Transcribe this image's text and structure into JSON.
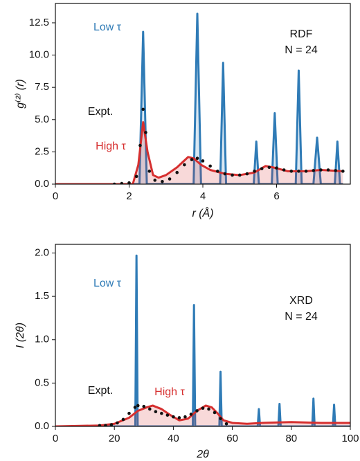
{
  "chart_data": [
    {
      "type": "line",
      "xlabel": "r (Å)",
      "ylabel": "g⁽²⁾ (r)",
      "annotations": [
        "RDF",
        "N = 24"
      ],
      "xlim": [
        0,
        8
      ],
      "xticks": [
        0,
        2,
        4,
        6
      ],
      "ylim": [
        0,
        14
      ],
      "yticks": [
        {
          "value": 0,
          "label": "0.0"
        },
        {
          "value": 2.5,
          "label": "2.5"
        },
        {
          "value": 5,
          "label": "5.0"
        },
        {
          "value": 7.5,
          "label": "7.5"
        },
        {
          "value": 10,
          "label": "10.0"
        },
        {
          "value": 12.5,
          "label": "12.5"
        }
      ],
      "series": [
        {
          "name": "Low τ",
          "color": "#2f7bb6",
          "mode": "lines",
          "fill": true,
          "x": [
            0,
            2.28,
            2.38,
            2.48,
            3.75,
            3.85,
            3.95,
            4.47,
            4.55,
            4.63,
            5.38,
            5.45,
            5.52,
            5.87,
            5.95,
            6.03,
            6.52,
            6.6,
            6.68,
            7.0,
            7.1,
            7.2,
            7.58,
            7.65,
            7.72,
            7.8
          ],
          "values": [
            0,
            0,
            11.8,
            0,
            0,
            13.2,
            0,
            0,
            9.4,
            0,
            0,
            3.3,
            0,
            0,
            5.5,
            0,
            0,
            8.8,
            0,
            0,
            3.6,
            0,
            0,
            3.3,
            0,
            0
          ]
        },
        {
          "name": "High τ",
          "color": "#d62f2f",
          "mode": "lines",
          "fill": true,
          "x": [
            0,
            2.1,
            2.25,
            2.38,
            2.5,
            2.65,
            2.8,
            3.0,
            3.3,
            3.6,
            3.75,
            3.95,
            4.2,
            4.6,
            5.0,
            5.4,
            5.7,
            5.9,
            6.3,
            6.8,
            7.2,
            7.8
          ],
          "values": [
            0,
            0,
            1.5,
            4.8,
            2.5,
            0.7,
            0.5,
            0.7,
            1.3,
            2.1,
            2.0,
            1.5,
            1.1,
            0.8,
            0.7,
            0.9,
            1.4,
            1.3,
            1.0,
            1.0,
            1.1,
            1.0
          ]
        },
        {
          "name": "Expt.",
          "color": "#111111",
          "mode": "markers",
          "fill": false,
          "x": [
            1.6,
            1.8,
            2.0,
            2.2,
            2.3,
            2.38,
            2.45,
            2.55,
            2.7,
            2.9,
            3.1,
            3.3,
            3.5,
            3.7,
            3.85,
            4.0,
            4.2,
            4.4,
            4.6,
            4.8,
            5.0,
            5.2,
            5.4,
            5.6,
            5.8,
            6.0,
            6.2,
            6.4,
            6.6,
            6.8,
            7.0,
            7.2,
            7.4,
            7.6,
            7.8
          ],
          "values": [
            0,
            0.05,
            0.1,
            0.6,
            3.0,
            5.8,
            4.0,
            1.0,
            0.3,
            0.2,
            0.4,
            0.9,
            1.5,
            1.9,
            2.0,
            1.8,
            1.4,
            1.0,
            0.8,
            0.7,
            0.7,
            0.8,
            1.0,
            1.2,
            1.3,
            1.25,
            1.1,
            1.0,
            1.0,
            1.0,
            1.05,
            1.1,
            1.1,
            1.05,
            1.0
          ]
        }
      ]
    },
    {
      "type": "line",
      "xlabel": "2θ",
      "ylabel": "I (2θ)",
      "annotations": [
        "XRD",
        "N = 24"
      ],
      "xlim": [
        0,
        100
      ],
      "xticks": [
        0,
        20,
        40,
        60,
        80,
        100
      ],
      "ylim": [
        0,
        2.1
      ],
      "yticks": [
        {
          "value": 0,
          "label": "0.0"
        },
        {
          "value": 0.5,
          "label": "0.5"
        },
        {
          "value": 1,
          "label": "1.0"
        },
        {
          "value": 1.5,
          "label": "1.5"
        },
        {
          "value": 2,
          "label": "2.0"
        }
      ],
      "series": [
        {
          "name": "Low τ",
          "color": "#2f7bb6",
          "mode": "lines",
          "fill": true,
          "x": [
            0,
            27.1,
            27.5,
            27.9,
            46.6,
            47,
            47.4,
            55.6,
            56,
            56.4,
            68.6,
            69,
            69.4,
            75.6,
            76,
            76.4,
            87.1,
            87.5,
            87.9,
            94.1,
            94.5,
            94.9,
            100
          ],
          "values": [
            0,
            0,
            1.97,
            0,
            0,
            1.4,
            0,
            0,
            0.63,
            0,
            0,
            0.2,
            0,
            0,
            0.26,
            0,
            0,
            0.32,
            0,
            0,
            0.25,
            0,
            0
          ]
        },
        {
          "name": "High τ",
          "color": "#d62f2f",
          "mode": "lines",
          "fill": true,
          "x": [
            0,
            15,
            20,
            25,
            28,
            31,
            33,
            36,
            39,
            42,
            45,
            48,
            51,
            53,
            55,
            57,
            60,
            65,
            70,
            80,
            90,
            100
          ],
          "values": [
            0,
            0.01,
            0.03,
            0.1,
            0.18,
            0.22,
            0.24,
            0.2,
            0.13,
            0.07,
            0.09,
            0.18,
            0.24,
            0.22,
            0.15,
            0.07,
            0.04,
            0.03,
            0.04,
            0.05,
            0.04,
            0.04
          ]
        },
        {
          "name": "Expt.",
          "color": "#111111",
          "mode": "markers",
          "fill": false,
          "x": [
            15,
            17,
            19,
            21,
            23,
            25,
            27,
            28,
            30,
            32,
            34,
            36,
            38,
            40,
            42,
            44,
            46,
            48,
            50,
            52,
            54,
            56,
            58
          ],
          "values": [
            0.01,
            0.01,
            0.02,
            0.04,
            0.08,
            0.15,
            0.22,
            0.24,
            0.23,
            0.2,
            0.17,
            0.15,
            0.13,
            0.11,
            0.1,
            0.11,
            0.14,
            0.18,
            0.21,
            0.2,
            0.16,
            0.09,
            0.03
          ]
        }
      ]
    }
  ]
}
